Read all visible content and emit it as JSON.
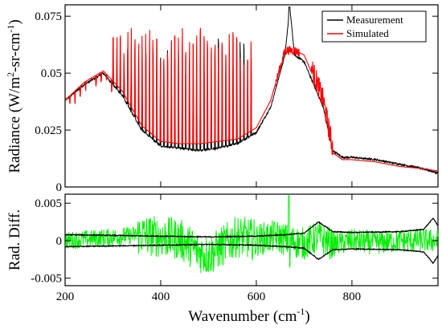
{
  "chart_data": [
    {
      "type": "line",
      "panel": "top",
      "xlabel": "Wavenumber (cm⁻¹)",
      "ylabel": "Radiance (W/m²-sr-cm⁻¹)",
      "ylabel_parts": {
        "pre": "Radiance (W/m",
        "sup1": "2",
        "mid": "-sr-cm",
        "sup2": "-1",
        "post": ")"
      },
      "xlim": [
        200,
        980
      ],
      "ylim": [
        0,
        0.08
      ],
      "yticks": [
        0,
        0.025,
        0.05,
        0.075
      ],
      "ytick_labels": [
        "0",
        "0.025",
        "0.05",
        "0.075"
      ],
      "legend_position": "top-right",
      "grid": false,
      "series": [
        {
          "name": "Measurement",
          "color": "#000000",
          "x": [
            200,
            240,
            280,
            320,
            360,
            400,
            440,
            480,
            520,
            560,
            600,
            630,
            660,
            670,
            680,
            700,
            720,
            740,
            760,
            780,
            800,
            850,
            900,
            950,
            980
          ],
          "y": [
            0.038,
            0.045,
            0.05,
            0.04,
            0.025,
            0.018,
            0.017,
            0.016,
            0.017,
            0.019,
            0.024,
            0.035,
            0.058,
            0.079,
            0.058,
            0.055,
            0.045,
            0.035,
            0.016,
            0.013,
            0.013,
            0.012,
            0.01,
            0.008,
            0.006
          ]
        },
        {
          "name": "Simulated",
          "color": "#ff0000",
          "x": [
            200,
            240,
            280,
            320,
            360,
            400,
            440,
            480,
            520,
            560,
            600,
            630,
            660,
            670,
            680,
            700,
            720,
            740,
            760,
            780,
            800,
            850,
            900,
            950,
            980
          ],
          "y": [
            0.038,
            0.046,
            0.051,
            0.042,
            0.027,
            0.02,
            0.019,
            0.019,
            0.02,
            0.021,
            0.026,
            0.038,
            0.06,
            0.06,
            0.06,
            0.058,
            0.048,
            0.036,
            0.015,
            0.012,
            0.012,
            0.011,
            0.009,
            0.008,
            0.007
          ]
        }
      ]
    },
    {
      "type": "line",
      "panel": "bottom",
      "xlabel": "Wavenumber (cm⁻¹)",
      "ylabel": "Rad. Diff.",
      "xlim": [
        200,
        980
      ],
      "ylim": [
        -0.006,
        0.0062
      ],
      "xticks": [
        200,
        400,
        600,
        800
      ],
      "xtick_labels": [
        "200",
        "400",
        "600",
        "800"
      ],
      "yticks": [
        -0.005,
        0,
        0.005
      ],
      "ytick_labels": [
        "-0.005",
        "0",
        "0.005"
      ],
      "series": [
        {
          "name": "",
          "color": "#00ee00",
          "description": "difference (measurement - simulated)",
          "x": [
            200,
            300,
            360,
            400,
            440,
            480,
            500,
            560,
            600,
            640,
            668,
            700,
            730,
            760,
            800,
            850,
            900,
            950,
            980
          ],
          "y": [
            0.0,
            0.0005,
            0.0008,
            0.0005,
            0.0002,
            -0.0015,
            -0.002,
            0.0006,
            0.0001,
            0.0006,
            0.0,
            -0.0004,
            0.0005,
            -0.0005,
            0.0,
            -0.0003,
            0.0,
            0.0,
            0.0
          ]
        },
        {
          "name": "",
          "color": "#000000",
          "description": "upper uncertainty envelope",
          "x": [
            200,
            300,
            400,
            500,
            600,
            660,
            700,
            730,
            760,
            800,
            900,
            950,
            970,
            980
          ],
          "y": [
            0.0008,
            0.0007,
            0.0006,
            0.0005,
            0.0006,
            0.0008,
            0.001,
            0.0025,
            0.0012,
            0.0011,
            0.0012,
            0.0015,
            0.003,
            0.002
          ]
        },
        {
          "name": "",
          "color": "#000000",
          "description": "lower uncertainty envelope",
          "x": [
            200,
            300,
            400,
            500,
            600,
            660,
            700,
            730,
            760,
            800,
            900,
            950,
            970,
            980
          ],
          "y": [
            -0.0008,
            -0.0007,
            -0.0006,
            -0.0005,
            -0.0006,
            -0.0008,
            -0.001,
            -0.0025,
            -0.0012,
            -0.0011,
            -0.0012,
            -0.0015,
            -0.003,
            -0.002
          ]
        }
      ]
    }
  ]
}
